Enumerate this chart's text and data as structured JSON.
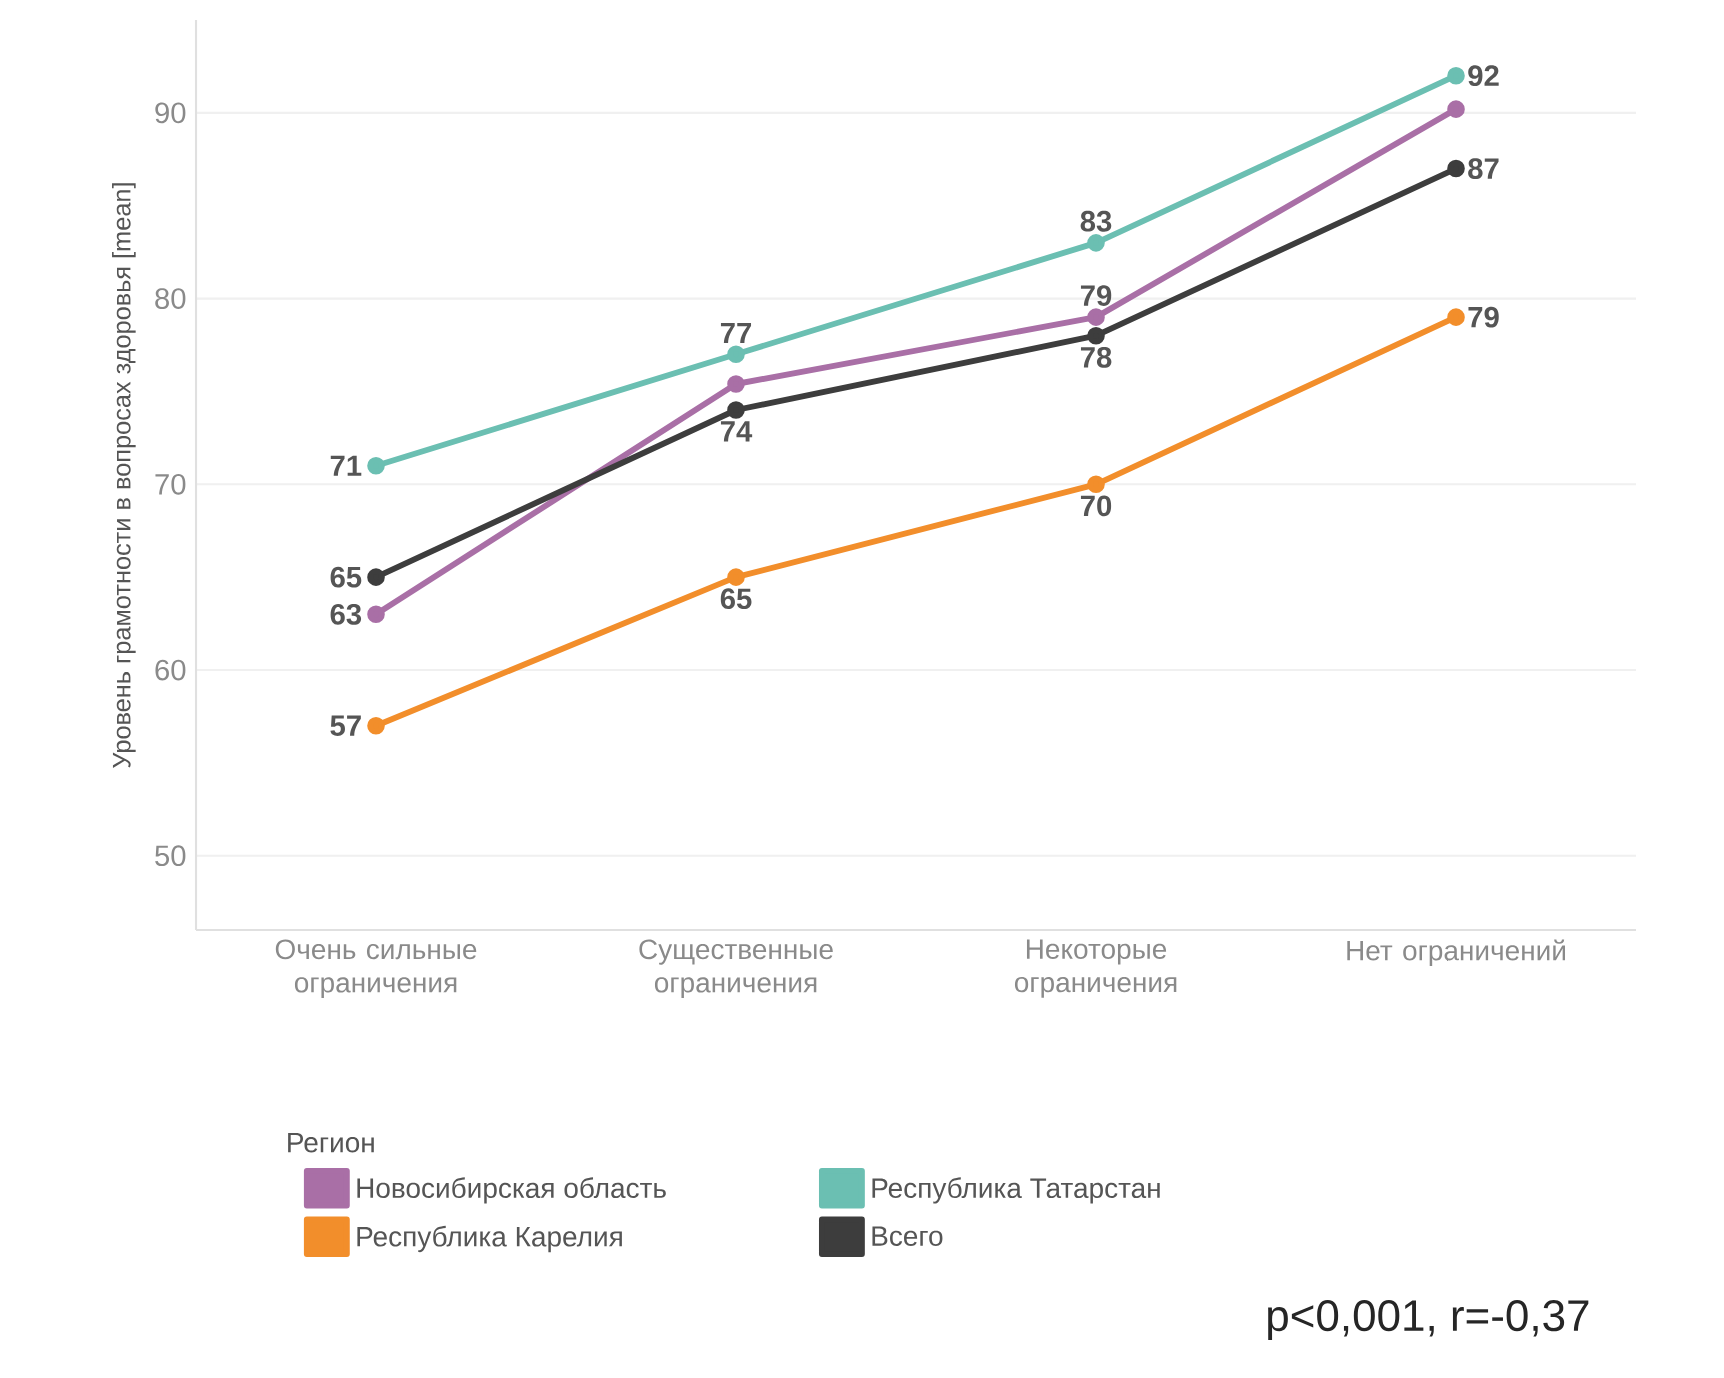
{
  "chart_data": {
    "type": "line",
    "ylabel": "Уровень грамотности в вопросах здоровья [mean]",
    "legend_title": "Регион",
    "categories": [
      "Очень сильные ограничения",
      "Существенные ограничения",
      "Некоторые ограничения",
      "Нет ограничений"
    ],
    "series": [
      {
        "name": "Новосибирская область",
        "color": "#a96fa6",
        "values": [
          63,
          75.4,
          79,
          90.2
        ],
        "value_labels": [
          "63",
          null,
          "79",
          null
        ]
      },
      {
        "name": "Республика Татарстан",
        "color": "#6bbfb2",
        "values": [
          71,
          77,
          83,
          92
        ],
        "value_labels": [
          "71",
          "77",
          "83",
          "92"
        ]
      },
      {
        "name": "Республика Карелия",
        "color": "#f28e2b",
        "values": [
          57,
          65,
          70,
          79
        ],
        "value_labels": [
          "57",
          "65",
          "70",
          "79"
        ]
      },
      {
        "name": "Всего",
        "color": "#3d3d3d",
        "values": [
          65,
          74,
          78,
          87
        ],
        "value_labels": [
          "65",
          "74",
          "78",
          "87"
        ]
      }
    ],
    "ylim": [
      46,
      95
    ],
    "yticks": [
      50,
      60,
      70,
      80,
      90
    ],
    "grid": "y",
    "legend": "bottom",
    "marker": "circle",
    "line_style": "solid",
    "annotations": [
      "p<0,001, r=-0,37"
    ]
  }
}
